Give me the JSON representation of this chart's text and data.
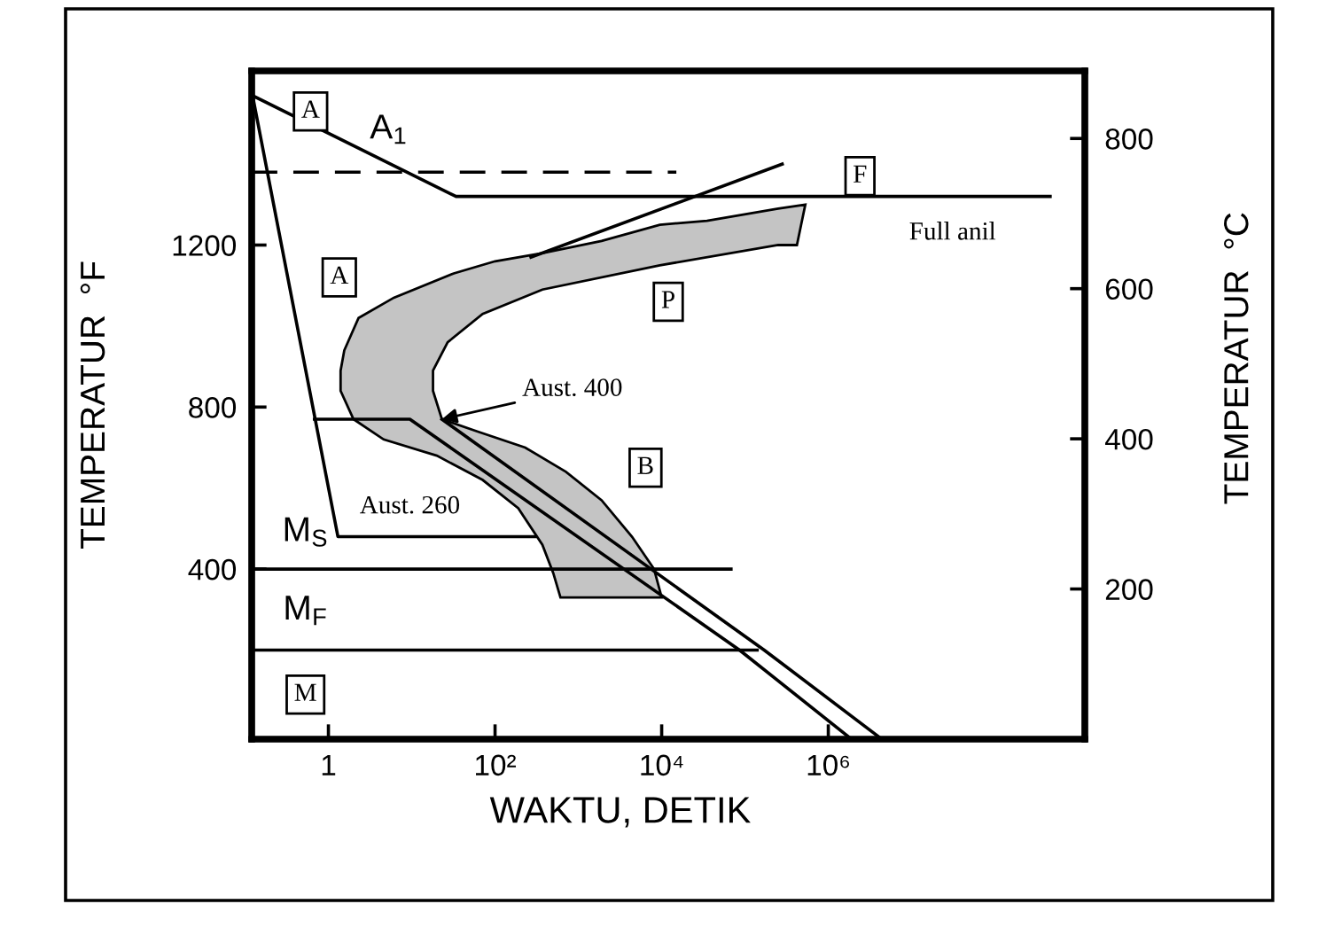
{
  "chart_data": {
    "type": "line",
    "xlabel": "WAKTU, DETIK",
    "ylabel": "TEMPERATUR  °F",
    "y2label": "TEMPERATUR  °C",
    "log": "x",
    "xlim": [
      0.12,
      1200000000
    ],
    "xticks": [
      1,
      {
        "value": 100,
        "label": "10²"
      },
      {
        "value": 10000,
        "label": "10⁴"
      },
      {
        "value": 1000000,
        "label": "10⁶"
      }
    ],
    "ylim": [
      -20,
      1630
    ],
    "yticks": [
      400,
      800,
      1200
    ],
    "y2lim": [
      0,
      890
    ],
    "y2ticks": [
      200,
      400,
      600,
      800
    ],
    "series": [
      {
        "type": "area",
        "color": "#c4c4c4",
        "x": [
          530000,
          250000,
          35000,
          9500,
          1900,
          370,
          100,
          32,
          6.1,
          2.3,
          1.55,
          1.4,
          1.4,
          2.0,
          4.6,
          20,
          71,
          190,
          370,
          500,
          610,
          10000,
          8100,
          4400,
          1900,
          710,
          230,
          61,
          23,
          18,
          18,
          27,
          71,
          370,
          9500,
          250000,
          420000
        ],
        "values": [
          1300,
          1290,
          1260,
          1250,
          1210,
          1180,
          1160,
          1130,
          1070,
          1020,
          940,
          890,
          840,
          770,
          720,
          680,
          620,
          550,
          460,
          390,
          330,
          330,
          400,
          480,
          570,
          640,
          700,
          740,
          770,
          840,
          890,
          960,
          1030,
          1090,
          1150,
          1200,
          1200
        ]
      },
      {
        "color": "#000000",
        "x": [
          0.12,
          34,
          460000000
        ],
        "values": [
          1570,
          1320,
          1320
        ]
      },
      {
        "color": "#000000",
        "line_style": "dashed",
        "x": [
          0.12,
          15000
        ],
        "values": [
          1380,
          1380
        ]
      },
      {
        "color": "#000000",
        "x": [
          270,
          280000
        ],
        "values": [
          1170,
          1400
        ]
      },
      {
        "color": "#000000",
        "x": [
          0.12,
          1.3,
          300
        ],
        "values": [
          1580,
          480,
          480
        ]
      },
      {
        "color": "#000000",
        "x": [
          0.68,
          9.5,
          86000,
          1900000
        ],
        "values": [
          770,
          770,
          200,
          -20
        ]
      },
      {
        "color": "#000000",
        "x": [
          23,
          170000,
          4400000
        ],
        "values": [
          770,
          200,
          -20
        ]
      },
      {
        "color": "#000000",
        "x": [
          0.12,
          68000
        ],
        "values": [
          400,
          400
        ]
      },
      {
        "color": "#000000",
        "x": [
          0.12,
          140000
        ],
        "values": [
          200,
          200
        ]
      }
    ],
    "annotations": [
      {
        "text": "A",
        "x": 0.61,
        "y": 1530
      },
      {
        "text": "A",
        "x": 1.35,
        "y": 1120
      },
      {
        "text": "P",
        "x": 12000,
        "y": 1060
      },
      {
        "text": "F",
        "x": 2400000,
        "y": 1370
      },
      {
        "text": "B",
        "x": 6400,
        "y": 650
      },
      {
        "text": "M",
        "x": 0.53,
        "y": 90
      },
      {
        "text": "A$_{1}$",
        "x": 5.3,
        "y": 1400
      },
      {
        "text": "M$_{S}$",
        "x": 0.53,
        "y": 400
      },
      {
        "text": "M$_{F}$",
        "x": 0.53,
        "y": 200
      },
      {
        "text": "Full anil",
        "x": 31000000,
        "y": 1320
      },
      {
        "text": "Aust. 260",
        "x": 9.5,
        "y": 480
      },
      {
        "text": "Aust. 400",
        "x": 23,
        "y": 770
      }
    ]
  }
}
